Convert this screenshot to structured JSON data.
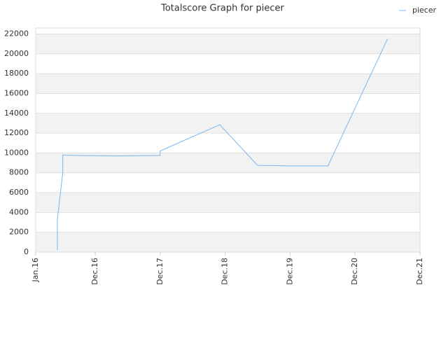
{
  "chart_data": {
    "type": "line",
    "title": "Totalscore Graph for piecer",
    "x": [
      "2016-05",
      "2016-05",
      "2016-06",
      "2016-06",
      "2016-09",
      "2017-04",
      "2017-11",
      "2017-12",
      "2017-12",
      "2018-11",
      "2019-06",
      "2019-12",
      "2020-07",
      "2021-06"
    ],
    "series": [
      {
        "name": "piecer",
        "color": "#7cb5ec",
        "values": [
          200,
          3300,
          8000,
          9800,
          9750,
          9700,
          9750,
          9750,
          10200,
          12850,
          8750,
          8700,
          8700,
          21500
        ]
      }
    ],
    "xlim": [
      "2016-01",
      "2021-12"
    ],
    "xticks": [
      {
        "value": "2016-01",
        "label": "Jan.16"
      },
      {
        "value": "2016-12",
        "label": "Dec.16"
      },
      {
        "value": "2017-12",
        "label": "Dec.17"
      },
      {
        "value": "2018-12",
        "label": "Dec.18"
      },
      {
        "value": "2019-12",
        "label": "Dec.19"
      },
      {
        "value": "2020-12",
        "label": "Dec.20"
      },
      {
        "value": "2021-12",
        "label": "Dec.21"
      }
    ],
    "ylim": [
      0,
      22600
    ],
    "yticks": [
      0,
      2000,
      4000,
      6000,
      8000,
      10000,
      12000,
      14000,
      16000,
      18000,
      20000,
      22000
    ],
    "grid": true,
    "legend": "top-right"
  }
}
